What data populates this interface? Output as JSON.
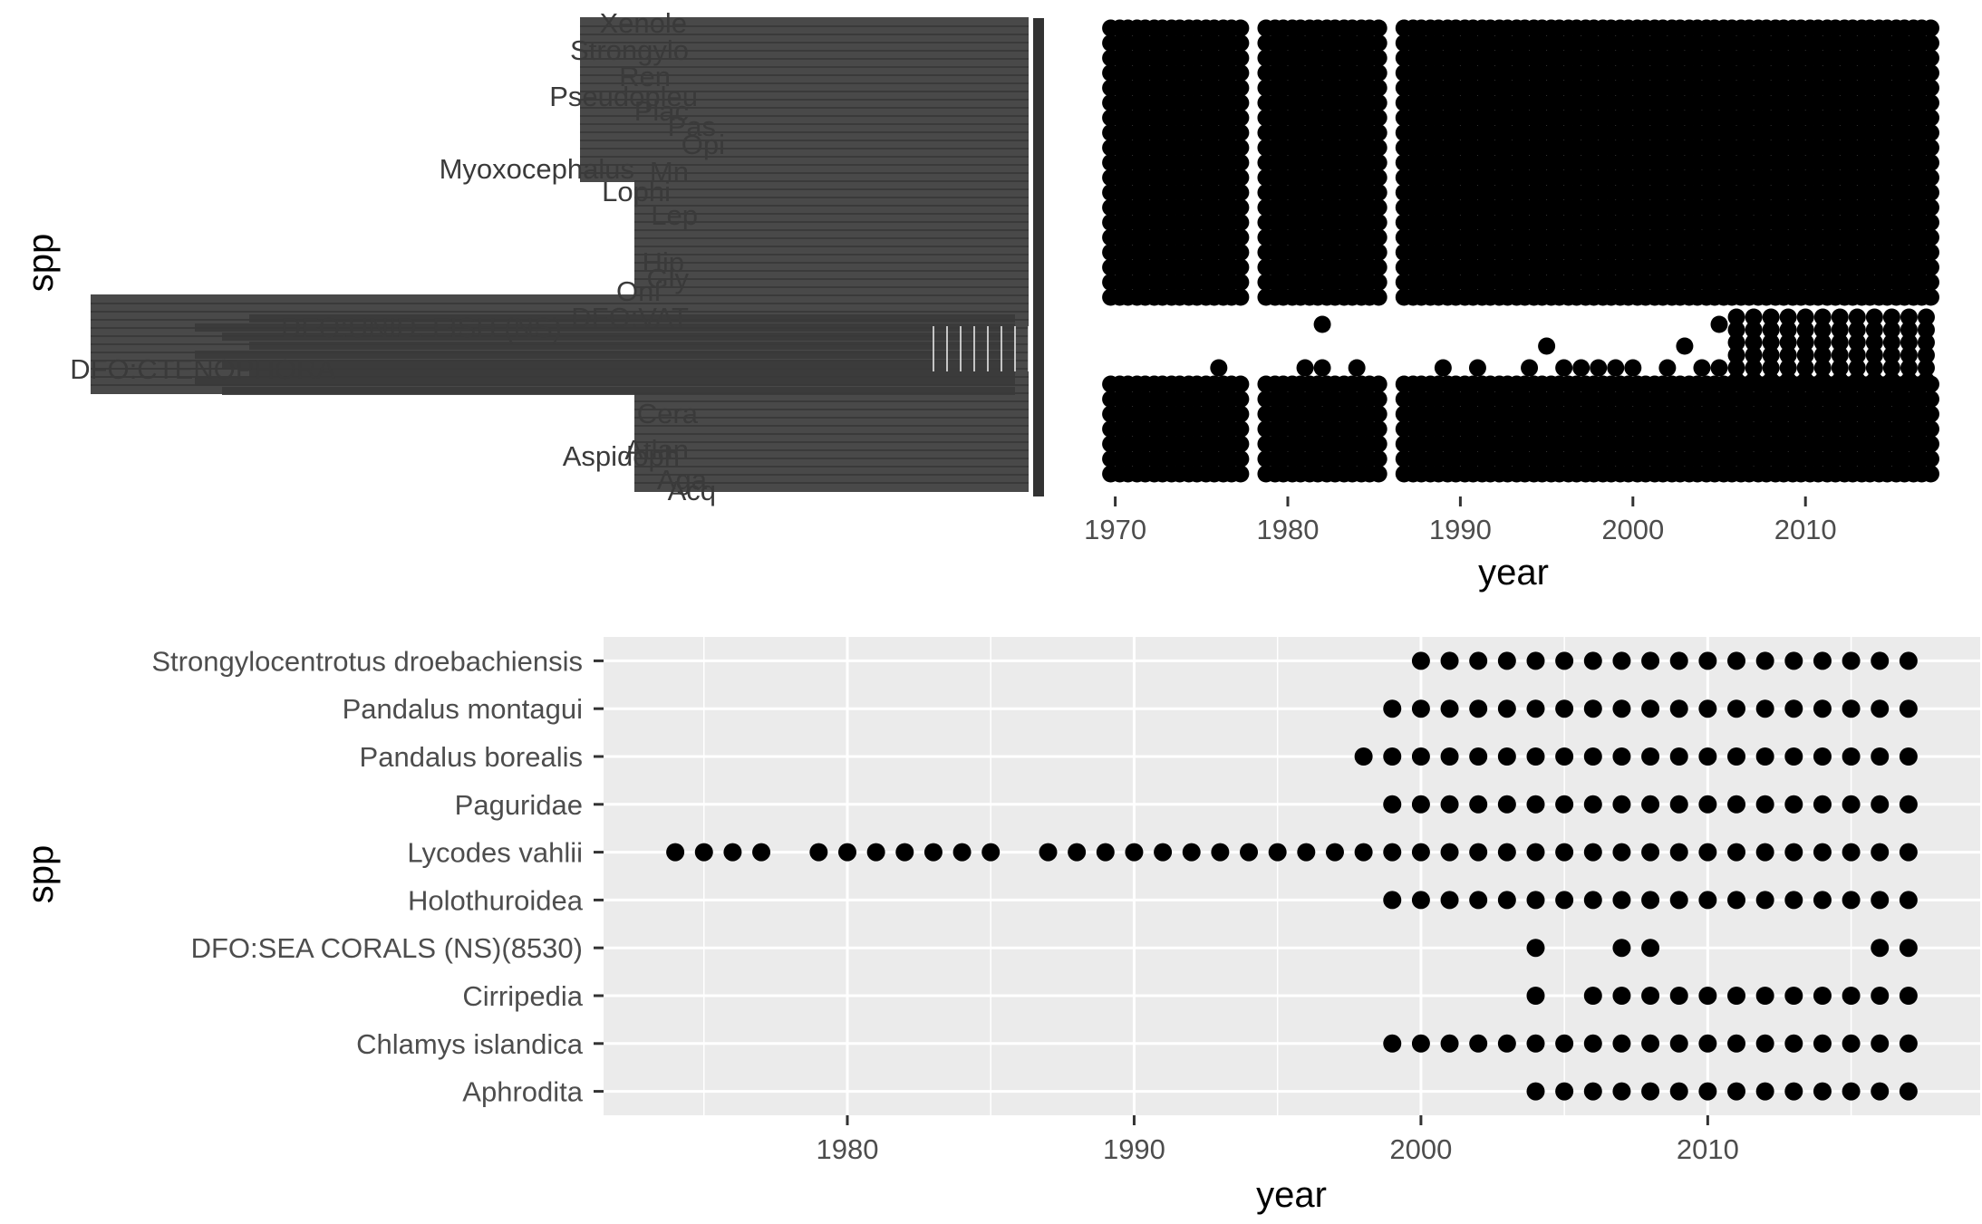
{
  "chart_data": [
    {
      "type": "scatter",
      "title": "",
      "xlabel": "year",
      "ylabel": "spp",
      "xlim": [
        1967.5,
        2017.5
      ],
      "x_ticks": [
        1970,
        1980,
        1990,
        2000,
        2010
      ],
      "grid": false,
      "legend": "none",
      "point_color": "#000000",
      "label_color": "#3a3a3a",
      "legible_y_tick_labels": [
        "Xenole",
        "Strongylo",
        "Ren",
        "Pseudopleu",
        "Plac",
        "Pas",
        "Opi",
        "Myoxocephalus",
        "Mn",
        "Lophi",
        "Lep",
        "Hip",
        "Gly",
        "Onf",
        "DFO:VAT",
        "DFO:UNID. FISH (NS)",
        "DFO:CTENOPHORA",
        "Cera",
        "Atlan",
        "Aspidoph",
        "Aga",
        "Acq"
      ],
      "year_gaps": [
        [
          1977.5,
          1978.5
        ],
        [
          1985.5,
          1986.5
        ]
      ],
      "dense_years": [
        1970,
        1971,
        1972,
        1973,
        1974,
        1975,
        1976,
        1977,
        1979,
        1980,
        1981,
        1982,
        1983,
        1984,
        1985,
        1987,
        1988,
        1989,
        1990,
        1991,
        1992,
        1993,
        1994,
        1995,
        1996,
        1997,
        1998,
        1999,
        2000,
        2001,
        2002,
        2003,
        2004,
        2005,
        2006,
        2007,
        2008,
        2009,
        2010,
        2011,
        2012,
        2013,
        2014,
        2015,
        2016,
        2017
      ],
      "sparse_band_points": [
        {
          "x": 1976,
          "rank": 0.3
        },
        {
          "x": 1981,
          "rank": 0.3
        },
        {
          "x": 1982,
          "rank": 0.9
        },
        {
          "x": 1982,
          "rank": 0.3
        },
        {
          "x": 1984,
          "rank": 0.3
        },
        {
          "x": 1989,
          "rank": 0.3
        },
        {
          "x": 1991,
          "rank": 0.3
        },
        {
          "x": 1994,
          "rank": 0.3
        },
        {
          "x": 1995,
          "rank": 0.6
        },
        {
          "x": 1996,
          "rank": 0.3
        },
        {
          "x": 1997,
          "rank": 0.3
        },
        {
          "x": 1998,
          "rank": 0.3
        },
        {
          "x": 1999,
          "rank": 0.3
        },
        {
          "x": 2000,
          "rank": 0.3
        },
        {
          "x": 2002,
          "rank": 0.3
        },
        {
          "x": 2003,
          "rank": 0.6
        },
        {
          "x": 2004,
          "rank": 0.3
        },
        {
          "x": 2005,
          "rank": 0.9
        },
        {
          "x": 2005,
          "rank": 0.3
        }
      ]
    },
    {
      "type": "scatter",
      "title": "",
      "xlabel": "year",
      "ylabel": "spp",
      "xlim": [
        1971.5,
        2019.5
      ],
      "x_ticks": [
        1980,
        1990,
        2000,
        2010
      ],
      "grid": true,
      "legend": "none",
      "panel_background": "#ebebeb",
      "point_color": "#000000",
      "species": [
        "Strongylocentrotus droebachiensis",
        "Pandalus montagui",
        "Pandalus borealis",
        "Paguridae",
        "Lycodes vahlii",
        "Holothuroidea",
        "DFO:SEA CORALS (NS)(8530)",
        "Cirripedia",
        "Chlamys islandica",
        "Aphrodita"
      ],
      "series": [
        {
          "name": "Strongylocentrotus droebachiensis",
          "years": [
            2000,
            2001,
            2002,
            2003,
            2004,
            2005,
            2006,
            2007,
            2008,
            2009,
            2010,
            2011,
            2012,
            2013,
            2014,
            2015,
            2016,
            2017
          ]
        },
        {
          "name": "Pandalus montagui",
          "years": [
            1999,
            2000,
            2001,
            2002,
            2003,
            2004,
            2005,
            2006,
            2007,
            2008,
            2009,
            2010,
            2011,
            2012,
            2013,
            2014,
            2015,
            2016,
            2017
          ]
        },
        {
          "name": "Pandalus borealis",
          "years": [
            1998,
            1999,
            2000,
            2001,
            2002,
            2003,
            2004,
            2005,
            2006,
            2007,
            2008,
            2009,
            2010,
            2011,
            2012,
            2013,
            2014,
            2015,
            2016,
            2017
          ]
        },
        {
          "name": "Paguridae",
          "years": [
            1999,
            2000,
            2001,
            2002,
            2003,
            2004,
            2005,
            2006,
            2007,
            2008,
            2009,
            2010,
            2011,
            2012,
            2013,
            2014,
            2015,
            2016,
            2017
          ]
        },
        {
          "name": "Lycodes vahlii",
          "years": [
            1974,
            1975,
            1976,
            1977,
            1979,
            1980,
            1981,
            1982,
            1983,
            1984,
            1985,
            1987,
            1988,
            1989,
            1990,
            1991,
            1992,
            1993,
            1994,
            1995,
            1996,
            1997,
            1998,
            1999,
            2000,
            2001,
            2002,
            2003,
            2004,
            2005,
            2006,
            2007,
            2008,
            2009,
            2010,
            2011,
            2012,
            2013,
            2014,
            2015,
            2016,
            2017
          ]
        },
        {
          "name": "Holothuroidea",
          "years": [
            1999,
            2000,
            2001,
            2002,
            2003,
            2004,
            2005,
            2006,
            2007,
            2008,
            2009,
            2010,
            2011,
            2012,
            2013,
            2014,
            2015,
            2016,
            2017
          ]
        },
        {
          "name": "DFO:SEA CORALS (NS)(8530)",
          "years": [
            2004,
            2007,
            2008,
            2016,
            2017
          ]
        },
        {
          "name": "Cirripedia",
          "years": [
            2004,
            2006,
            2007,
            2008,
            2009,
            2010,
            2011,
            2012,
            2013,
            2014,
            2015,
            2016,
            2017
          ]
        },
        {
          "name": "Chlamys islandica",
          "years": [
            1999,
            2000,
            2001,
            2002,
            2003,
            2004,
            2005,
            2006,
            2007,
            2008,
            2009,
            2010,
            2011,
            2012,
            2013,
            2014,
            2015,
            2016,
            2017
          ]
        },
        {
          "name": "Aphrodita",
          "years": [
            2004,
            2005,
            2006,
            2007,
            2008,
            2009,
            2010,
            2011,
            2012,
            2013,
            2014,
            2015,
            2016,
            2017
          ]
        }
      ]
    }
  ]
}
